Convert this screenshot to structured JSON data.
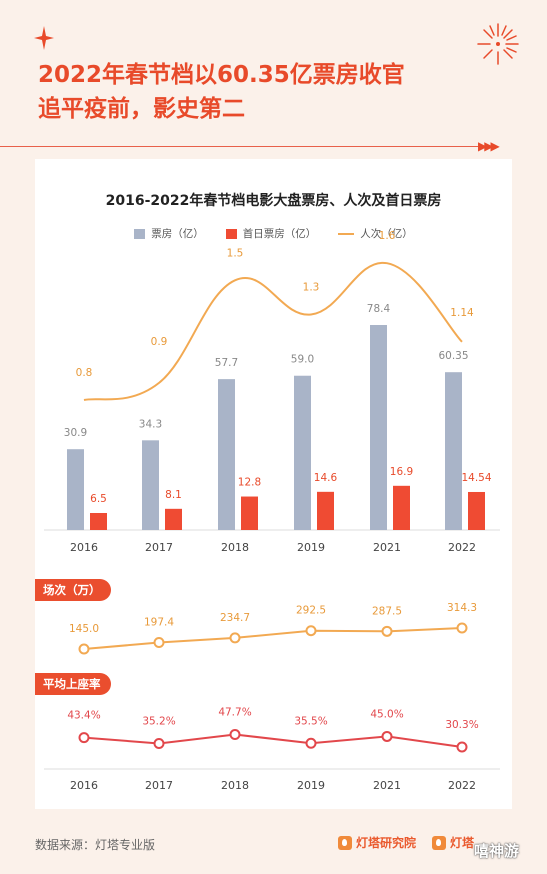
{
  "headline": {
    "line1": "2022年春节档以60.35亿票房收官",
    "line2": "追平疫前，影史第二"
  },
  "icons": {
    "spark": "four-point-star-icon",
    "firework": "firework-burst-icon",
    "arrows": "triple-chevron-right-icon"
  },
  "colors": {
    "accent": "#ea4e2e",
    "box_office_bar": "#a9b4c8",
    "first_day_bar": "#ef4b33",
    "attendance_line": "#f2a952",
    "screenings_line": "#f2a952",
    "occupancy_line": "#e2474b"
  },
  "chart_data": [
    {
      "type": "bar",
      "title": "2016-2022年春节档电影大盘票房、人次及首日票房",
      "categories": [
        "2016",
        "2017",
        "2018",
        "2019",
        "2021",
        "2022"
      ],
      "series": [
        {
          "name": "票房（亿）",
          "kind": "bar",
          "values": [
            30.9,
            34.3,
            57.7,
            59.0,
            78.4,
            60.35
          ],
          "labels": [
            "30.9",
            "34.3",
            "57.7",
            "59.0",
            "78.4",
            "60.35"
          ]
        },
        {
          "name": "首日票房（亿）",
          "kind": "bar",
          "values": [
            6.5,
            8.1,
            12.8,
            14.6,
            16.9,
            14.54
          ],
          "labels": [
            "6.5",
            "8.1",
            "12.8",
            "14.6",
            "16.9",
            "14.54"
          ]
        },
        {
          "name": "人次（亿）",
          "kind": "line",
          "values": [
            0.8,
            0.9,
            1.5,
            1.3,
            1.6,
            1.14
          ],
          "labels": [
            "0.8",
            "0.9",
            "1.5",
            "1.3",
            "1.6",
            "1.14"
          ]
        }
      ],
      "xlabel": "",
      "ylabel": "",
      "ylim": [
        0,
        90
      ],
      "grid": false,
      "legend": "top"
    },
    {
      "type": "line",
      "title": "场次（万）",
      "categories": [
        "2016",
        "2017",
        "2018",
        "2019",
        "2021",
        "2022"
      ],
      "values": [
        145.0,
        197.4,
        234.7,
        292.5,
        287.5,
        314.3
      ],
      "labels": [
        "145.0",
        "197.4",
        "234.7",
        "292.5",
        "287.5",
        "314.3"
      ],
      "grid": false
    },
    {
      "type": "line",
      "title": "平均上座率",
      "categories": [
        "2016",
        "2017",
        "2018",
        "2019",
        "2021",
        "2022"
      ],
      "values": [
        43.4,
        35.2,
        47.7,
        35.5,
        45.0,
        30.3
      ],
      "labels": [
        "43.4%",
        "35.2%",
        "47.7%",
        "35.5%",
        "45.0%",
        "30.3%"
      ],
      "unit": "%",
      "grid": false
    }
  ],
  "footer": {
    "source": "数据来源：灯塔专业版",
    "brand1": "灯塔研究院",
    "brand2": "灯塔",
    "watermark": "嘻神游"
  }
}
